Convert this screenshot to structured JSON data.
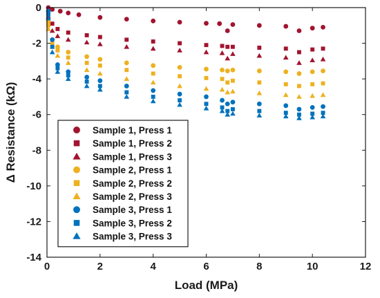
{
  "chart_data": {
    "type": "scatter",
    "title": "",
    "xlabel": "Load (MPa)",
    "ylabel": "Δ Resistance (kΩ)",
    "xlim": [
      0,
      12
    ],
    "ylim": [
      -14,
      0
    ],
    "xticks": [
      0,
      2,
      4,
      6,
      8,
      10,
      12
    ],
    "yticks": [
      0,
      -2,
      -4,
      -6,
      -8,
      -10,
      -12,
      -14
    ],
    "xtick_labels": [
      "0",
      "2",
      "4",
      "6",
      "8",
      "10",
      "12"
    ],
    "ytick_labels": [
      "0",
      "-2",
      "-4",
      "-6",
      "-8",
      "-10",
      "-12",
      "-14"
    ],
    "grid": false,
    "legend_position": "lower-left",
    "series": [
      {
        "name": "Sample 1, Press 1",
        "marker": "circle",
        "color": "#A2142F",
        "x": [
          0.05,
          0.2,
          0.5,
          0.8,
          1.2,
          2,
          3,
          4,
          5,
          6,
          6.5,
          6.8,
          7,
          8,
          9,
          9.5,
          10,
          10.4
        ],
        "y": [
          0,
          -0.1,
          -0.2,
          -0.3,
          -0.4,
          -0.55,
          -0.65,
          -0.75,
          -0.82,
          -0.88,
          -0.9,
          -1.3,
          -0.95,
          -1.0,
          -1.05,
          -1.3,
          -1.15,
          -1.1
        ]
      },
      {
        "name": "Sample 1, Press 2",
        "marker": "square",
        "color": "#A2142F",
        "x": [
          0.05,
          0.2,
          0.4,
          0.8,
          1.5,
          2,
          3,
          4,
          5,
          6,
          6.6,
          6.8,
          7,
          8,
          9,
          9.5,
          10,
          10.4
        ],
        "y": [
          -0.3,
          -0.9,
          -1.2,
          -1.4,
          -1.55,
          -1.65,
          -1.8,
          -1.9,
          -2.0,
          -2.1,
          -2.15,
          -2.2,
          -2.2,
          -2.25,
          -2.3,
          -2.5,
          -2.35,
          -2.3
        ]
      },
      {
        "name": "Sample 1, Press 3",
        "marker": "triangle",
        "color": "#A2142F",
        "x": [
          0.05,
          0.2,
          0.4,
          0.8,
          1.5,
          2,
          3,
          4,
          5,
          6,
          6.6,
          6.8,
          7,
          8,
          9,
          9.5,
          10,
          10.4
        ],
        "y": [
          -0.5,
          -1.3,
          -1.6,
          -1.8,
          -1.95,
          -2.05,
          -2.2,
          -2.3,
          -2.4,
          -2.5,
          -2.55,
          -2.85,
          -2.6,
          -2.7,
          -2.8,
          -3.1,
          -2.95,
          -2.9
        ]
      },
      {
        "name": "Sample 2, Press 1",
        "marker": "circle",
        "color": "#EDB120",
        "x": [
          0.05,
          0.2,
          0.4,
          0.8,
          1.5,
          2,
          3,
          4,
          5,
          6,
          6.6,
          6.8,
          7,
          8,
          9,
          9.5,
          10,
          10.4
        ],
        "y": [
          -0.8,
          -1.8,
          -2.2,
          -2.5,
          -2.75,
          -2.9,
          -3.1,
          -3.25,
          -3.35,
          -3.45,
          -3.5,
          -3.55,
          -3.5,
          -3.55,
          -3.6,
          -3.7,
          -3.6,
          -3.55
        ]
      },
      {
        "name": "Sample 2, Press 2",
        "marker": "square",
        "color": "#EDB120",
        "x": [
          0.05,
          0.2,
          0.4,
          0.8,
          1.5,
          2,
          3,
          4,
          5,
          6,
          6.6,
          6.8,
          7,
          8,
          9,
          9.5,
          10,
          10.4
        ],
        "y": [
          -1.0,
          -2.0,
          -2.4,
          -2.8,
          -3.1,
          -3.25,
          -3.5,
          -3.7,
          -3.85,
          -3.95,
          -4.0,
          -4.2,
          -4.1,
          -4.2,
          -4.3,
          -4.4,
          -4.3,
          -4.25
        ]
      },
      {
        "name": "Sample 2, Press 3",
        "marker": "triangle",
        "color": "#EDB120",
        "x": [
          0.05,
          0.2,
          0.4,
          0.8,
          1.5,
          2,
          3,
          4,
          5,
          6,
          6.6,
          6.8,
          7,
          8,
          9,
          9.5,
          10,
          10.4
        ],
        "y": [
          -1.2,
          -2.2,
          -2.7,
          -3.1,
          -3.5,
          -3.7,
          -4.0,
          -4.2,
          -4.4,
          -4.55,
          -4.6,
          -4.75,
          -4.7,
          -4.8,
          -4.9,
          -5.0,
          -4.95,
          -4.9
        ]
      },
      {
        "name": "Sample 3, Press 1",
        "marker": "circle",
        "color": "#0072BD",
        "x": [
          0.05,
          0.2,
          0.4,
          0.8,
          1.5,
          2,
          3,
          4,
          5,
          6,
          6.6,
          6.8,
          7,
          8,
          9,
          9.5,
          10,
          10.4
        ],
        "y": [
          -0.2,
          -1.8,
          -3.2,
          -3.6,
          -3.9,
          -4.1,
          -4.4,
          -4.65,
          -4.85,
          -5.0,
          -5.2,
          -5.4,
          -5.3,
          -5.4,
          -5.5,
          -5.7,
          -5.6,
          -5.55
        ]
      },
      {
        "name": "Sample 3, Press 2",
        "marker": "square",
        "color": "#0072BD",
        "x": [
          0.05,
          0.2,
          0.4,
          0.8,
          1.5,
          2,
          3,
          4,
          5,
          6,
          6.6,
          6.8,
          7,
          8,
          9,
          9.5,
          10,
          10.4
        ],
        "y": [
          -0.4,
          -2.2,
          -3.4,
          -3.8,
          -4.15,
          -4.4,
          -4.75,
          -5.0,
          -5.2,
          -5.4,
          -5.6,
          -5.8,
          -5.7,
          -5.8,
          -5.9,
          -6.0,
          -5.95,
          -5.9
        ]
      },
      {
        "name": "Sample 3, Press 3",
        "marker": "triangle",
        "color": "#0072BD",
        "x": [
          0.05,
          0.2,
          0.4,
          0.8,
          1.5,
          2,
          3,
          4,
          5,
          6,
          6.6,
          6.8,
          7,
          8,
          9,
          9.5,
          10,
          10.4
        ],
        "y": [
          -0.6,
          -2.5,
          -3.6,
          -4.0,
          -4.4,
          -4.6,
          -5.0,
          -5.25,
          -5.45,
          -5.65,
          -5.8,
          -6.0,
          -5.95,
          -6.05,
          -6.1,
          -6.2,
          -6.15,
          -6.1
        ]
      }
    ]
  }
}
